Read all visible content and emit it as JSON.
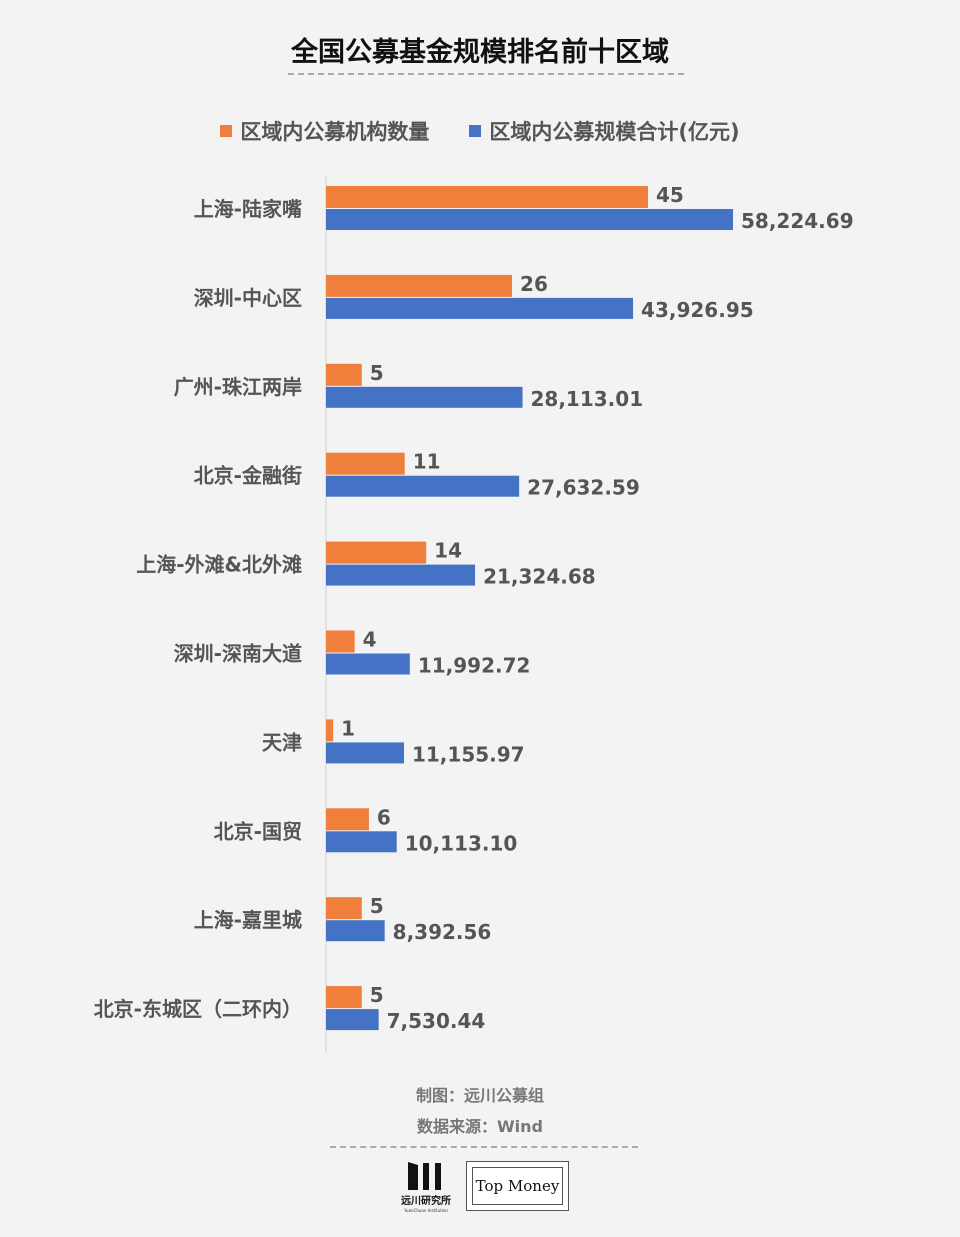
{
  "chart_data": {
    "type": "bar",
    "orientation": "horizontal",
    "title": "全国公募基金规模排名前十区域",
    "categories": [
      "上海-陆家嘴",
      "深圳-中心区",
      "广州-珠江两岸",
      "北京-金融街",
      "上海-外滩&北外滩",
      "深圳-深南大道",
      "天津",
      "北京-国贸",
      "上海-嘉里城",
      "北京-东城区（二环内）"
    ],
    "series": [
      {
        "name": "区域内公募机构数量",
        "color": "#f07f3c",
        "values": [
          45,
          26,
          5,
          11,
          14,
          4,
          1,
          6,
          5,
          5
        ],
        "labels": [
          "45",
          "26",
          "5",
          "11",
          "14",
          "4",
          "1",
          "6",
          "5",
          "5"
        ]
      },
      {
        "name": "区域内公募规模合计(亿元)",
        "color": "#4472c4",
        "values": [
          58224.69,
          43926.95,
          28113.01,
          27632.59,
          21324.68,
          11992.72,
          11155.97,
          10113.1,
          8392.56,
          7530.44
        ],
        "labels": [
          "58,224.69",
          "43,926.95",
          "28,113.01",
          "27,632.59",
          "21,324.68",
          "11,992.72",
          "11,155.97",
          "10,113.10",
          "8,392.56",
          "7,530.44"
        ]
      }
    ],
    "legend_position": "top",
    "grid": false,
    "value_axis_shown": false
  },
  "footer": {
    "made_by": "制图：远川公募组",
    "source": "数据来源：Wind",
    "logo_yuanchuan": "远川研究所",
    "logo_yuanchuan_en": "YuanChuan Institution",
    "logo_topmoney": "Top Money"
  }
}
